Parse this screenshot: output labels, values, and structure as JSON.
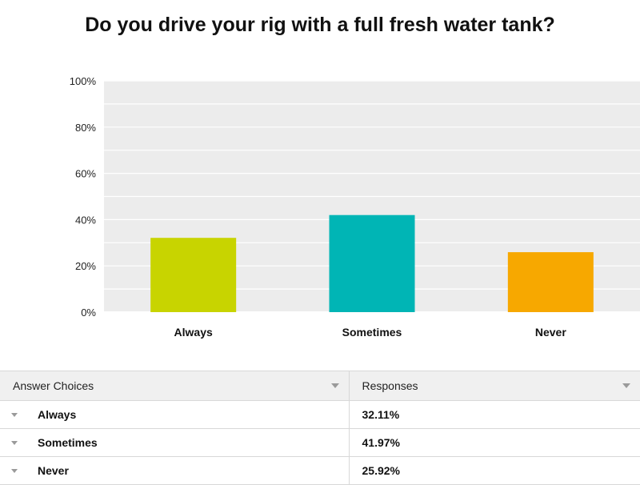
{
  "chart_data": {
    "type": "bar",
    "title": "Do you drive your rig with a full fresh water tank?",
    "categories": [
      "Always",
      "Sometimes",
      "Never"
    ],
    "values": [
      32.11,
      41.97,
      25.92
    ],
    "colors": [
      "#c8d400",
      "#00b5b5",
      "#f7a800"
    ],
    "ylim": [
      0,
      100
    ],
    "yticks": [
      "0%",
      "20%",
      "40%",
      "60%",
      "80%",
      "100%"
    ],
    "grid": true,
    "plot_background": "#ececec"
  },
  "table": {
    "headers": [
      "Answer Choices",
      "Responses"
    ],
    "rows": [
      {
        "choice": "Always",
        "response": "32.11%"
      },
      {
        "choice": "Sometimes",
        "response": "41.97%"
      },
      {
        "choice": "Never",
        "response": "25.92%"
      }
    ]
  }
}
